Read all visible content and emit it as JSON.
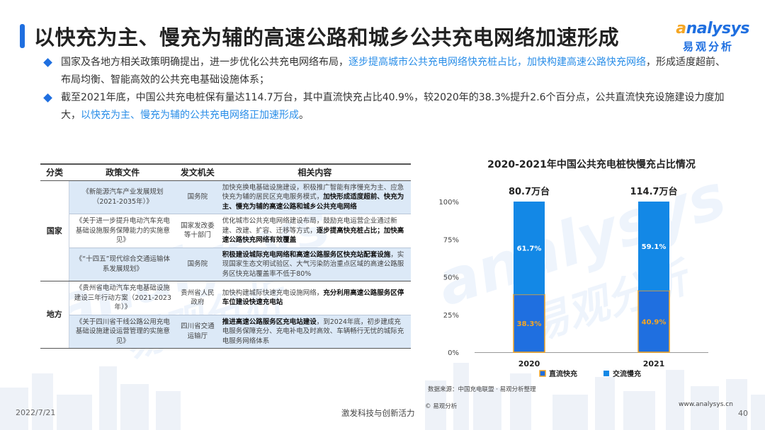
{
  "page": {
    "title": "以快充为主、慢充为辅的高速公路和城乡公共充电网络加速形成",
    "date": "2022/7/21",
    "slogan": "激发科技与创新活力",
    "page_number": "40",
    "copyright": "© 易观分析",
    "url": "www.analysys.cn",
    "accent_color": "#1f6fe0",
    "highlight_color": "#2a8ee8"
  },
  "logo": {
    "en": "nalysys",
    "en_initial": "a",
    "cn": "易观分析"
  },
  "watermark": {
    "en": "analysys",
    "cn": "易观分析"
  },
  "bullets": [
    {
      "text": "国家及各地方相关政策明确提出，进一步优化公共充电网络布局，",
      "highlight": "逐步提高城市公共充电网络快充桩占比，加快构建高速公路快充网络",
      "tail": "，形成适度超前、布局均衡、智能高效的公共充电基础设施体系；"
    },
    {
      "text": "截至2021年底，中国公共充电桩保有量达114.7万台，其中直流快充占比40.9%，较2020年的38.3%提升2.6个百分点，公共直流快充设施建设力度加大，",
      "highlight": "以快充为主、慢充为辅的公共充电网络正加速形成",
      "tail": "。"
    }
  ],
  "table": {
    "headers": [
      "分类",
      "政策文件",
      "发文机关",
      "相关内容"
    ],
    "groups": [
      {
        "category": "国家",
        "rows": [
          {
            "doc": "《新能源汽车产业发展规划（2021-2035年）》",
            "org": "国务院",
            "content": "加快充换电基础设施建设，积极推广智能有序慢充为主、应急快充为辅的居民区充电服务模式，",
            "content_bold": "加快形成适度超前、快充为主、慢充为辅的高速公路和城乡公共充电网络",
            "content_tail": ""
          },
          {
            "doc": "《关于进一步提升电动汽车充电基础设施服务保障能力的实施意见》",
            "org": "国家发改委等十部门",
            "content": "优化城市公共充电网络建设布局，鼓励充电运营企业通过新建、改建、扩容、迁移等方式，",
            "content_bold": "逐步提高快充桩占比；加快高速公路快充网络有效覆盖",
            "content_tail": ""
          },
          {
            "doc": "《“十四五”现代综合交通运输体系发展规划》",
            "org": "国务院",
            "content": "",
            "content_bold": "积极建设城际充电网络和高速公路服务区快充站配套设施",
            "content_tail": "，实现国家生态文明试验区、大气污染防治重点区域的高速公路服务区快充站覆盖率不低于80%"
          }
        ]
      },
      {
        "category": "地方",
        "rows": [
          {
            "doc": "《贵州省电动汽车充电基础设施建设三年行动方案（2021-2023年）》",
            "org": "贵州省人民政府",
            "content": "加快构建城际快速充电设施网络，",
            "content_bold": "充分利用高速公路服务区停车位建设快速充电站",
            "content_tail": ""
          },
          {
            "doc": "《关于四川省干线公路公用充电基础设施建设运营管理的实施意见》",
            "org": "四川省交通运输厅",
            "content": "",
            "content_bold": "推进高速公路服务区充电站建设",
            "content_tail": "，到2024年底，初步建成充电服务保障充分、充电补电及时高效、车辆畅行无忧的城际充电服务网络体系"
          }
        ]
      }
    ]
  },
  "chart_data": {
    "type": "bar",
    "stacked": true,
    "percent_stacked": true,
    "title": "2020-2021年中国公共充电桩快慢充占比情况",
    "categories": [
      "2020",
      "2021"
    ],
    "totals": [
      "80.7万台",
      "114.7万台"
    ],
    "yticks": [
      "0%",
      "25%",
      "50%",
      "75%",
      "100%"
    ],
    "ylim": [
      0,
      100
    ],
    "series": [
      {
        "name": "直流快充",
        "values": [
          38.3,
          40.9
        ],
        "labels": [
          "38.3%",
          "40.9%"
        ],
        "color": "#1f6fe0",
        "border": "#f5a623",
        "label_color": "#f5a623"
      },
      {
        "name": "交流慢充",
        "values": [
          61.7,
          59.1
        ],
        "labels": [
          "61.7%",
          "59.1%"
        ],
        "color": "#1388e6",
        "border": "#1388e6",
        "label_color": "#ffffff"
      }
    ],
    "legend_position": "bottom",
    "grid": false,
    "source": "数据来源：中国充电联盟 · 易观分析整理"
  }
}
